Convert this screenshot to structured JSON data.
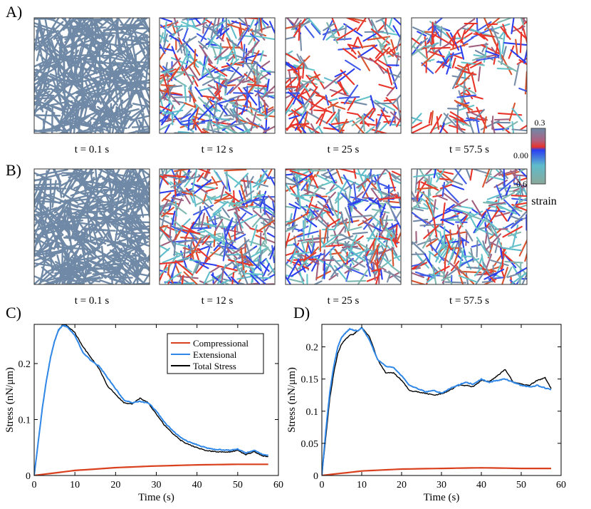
{
  "panel_labels": {
    "A": "A)",
    "B": "B)",
    "C": "C)",
    "D": "D)"
  },
  "snapshots": {
    "A": [
      {
        "time_label": "t = 0.1 s",
        "seed": 11,
        "mode": "initial"
      },
      {
        "time_label": "t = 12 s",
        "seed": 23,
        "mode": "strained"
      },
      {
        "time_label": "t = 25 s",
        "seed": 37,
        "mode": "sparse"
      },
      {
        "time_label": "t = 57.5 s",
        "seed": 53,
        "mode": "verysparse"
      }
    ],
    "B": [
      {
        "time_label": "t = 0.1 s",
        "seed": 61,
        "mode": "initial"
      },
      {
        "time_label": "t = 12 s",
        "seed": 71,
        "mode": "strained"
      },
      {
        "time_label": "t = 25 s",
        "seed": 83,
        "mode": "strained"
      },
      {
        "time_label": "t = 57.5 s",
        "seed": 97,
        "mode": "medium"
      }
    ]
  },
  "colorbar": {
    "title": "strain",
    "tick_max": "0.3",
    "tick_mid": "0.00",
    "tick_min": "-0.6",
    "range": [
      -0.6,
      0.3
    ],
    "stops": [
      {
        "value": 0.3,
        "color": "#6e8aa8"
      },
      {
        "value": 0.1,
        "color": "#b06080"
      },
      {
        "value": 0.0,
        "color": "#e8342a"
      },
      {
        "value": -0.05,
        "color": "#2a3ef0"
      },
      {
        "value": -0.3,
        "color": "#5fbccb"
      },
      {
        "value": -0.6,
        "color": "#8aa89a"
      }
    ]
  },
  "colors": {
    "initial_filament": "#6f89a6",
    "compressional": "#d9411e",
    "extensional": "#2f87e8",
    "total": "#000000"
  },
  "chart_data": [
    {
      "type": "line",
      "panel": "C",
      "xlabel": "Time (s)",
      "ylabel": "Stress (nN/μm)",
      "xlim": [
        0,
        60
      ],
      "ylim": [
        0,
        0.27
      ],
      "xticks": [
        0,
        10,
        20,
        30,
        40,
        50,
        60
      ],
      "yticks": [
        0,
        0.1,
        0.2
      ],
      "ytick_labels": [
        "0",
        "0.1",
        "0.2"
      ],
      "legend": {
        "placement": "top-right",
        "entries": [
          "Compressional",
          "Extensional",
          "Total Stress"
        ]
      },
      "series": [
        {
          "name": "Compressional",
          "color": "#d9411e",
          "x": [
            0,
            10,
            20,
            30,
            40,
            50,
            57.5
          ],
          "y": [
            0,
            0.009,
            0.014,
            0.017,
            0.019,
            0.02,
            0.02
          ]
        },
        {
          "name": "Extensional",
          "color": "#2f87e8",
          "x": [
            0,
            1,
            2,
            3,
            4,
            5,
            6,
            7,
            8,
            10,
            12,
            14,
            16,
            18,
            20,
            22,
            24,
            26,
            28,
            30,
            32,
            34,
            36,
            38,
            40,
            42,
            44,
            46,
            48,
            50,
            52,
            54,
            56,
            57.5
          ],
          "y": [
            0,
            0.06,
            0.12,
            0.17,
            0.21,
            0.24,
            0.26,
            0.268,
            0.266,
            0.25,
            0.22,
            0.205,
            0.195,
            0.175,
            0.155,
            0.135,
            0.13,
            0.132,
            0.13,
            0.115,
            0.095,
            0.08,
            0.068,
            0.06,
            0.055,
            0.05,
            0.047,
            0.046,
            0.045,
            0.047,
            0.04,
            0.045,
            0.038,
            0.036
          ]
        },
        {
          "name": "Total Stress",
          "color": "#000000",
          "x": [
            0,
            1,
            2,
            3,
            4,
            5,
            6,
            7,
            8,
            10,
            12,
            14,
            16,
            18,
            20,
            22,
            24,
            26,
            28,
            30,
            32,
            34,
            36,
            38,
            40,
            42,
            44,
            46,
            48,
            50,
            52,
            54,
            56,
            57.5
          ],
          "y": [
            0,
            0.06,
            0.12,
            0.17,
            0.21,
            0.24,
            0.26,
            0.27,
            0.268,
            0.255,
            0.23,
            0.21,
            0.19,
            0.16,
            0.145,
            0.13,
            0.128,
            0.138,
            0.13,
            0.11,
            0.09,
            0.075,
            0.063,
            0.055,
            0.05,
            0.045,
            0.043,
            0.042,
            0.042,
            0.045,
            0.037,
            0.043,
            0.035,
            0.034
          ]
        }
      ]
    },
    {
      "type": "line",
      "panel": "D",
      "xlabel": "Time (s)",
      "ylabel": "Stress (nN/μm)",
      "xlim": [
        0,
        60
      ],
      "ylim": [
        0,
        0.235
      ],
      "xticks": [
        0,
        10,
        20,
        30,
        40,
        50,
        60
      ],
      "yticks": [
        0,
        0.05,
        0.1,
        0.15,
        0.2
      ],
      "ytick_labels": [
        "0",
        "0.05",
        "0.1",
        "0.15",
        "0.2"
      ],
      "series": [
        {
          "name": "Compressional",
          "color": "#d9411e",
          "x": [
            0,
            10,
            20,
            30,
            40,
            50,
            57.5
          ],
          "y": [
            0,
            0.007,
            0.01,
            0.011,
            0.012,
            0.011,
            0.011
          ]
        },
        {
          "name": "Extensional",
          "color": "#2f87e8",
          "x": [
            0,
            1,
            2,
            3,
            4,
            5,
            6,
            7,
            8,
            9,
            10,
            12,
            14,
            16,
            18,
            20,
            22,
            24,
            26,
            28,
            30,
            32,
            34,
            36,
            38,
            40,
            42,
            44,
            46,
            48,
            50,
            52,
            54,
            56,
            57.5
          ],
          "y": [
            0,
            0.07,
            0.13,
            0.17,
            0.2,
            0.215,
            0.222,
            0.228,
            0.226,
            0.225,
            0.23,
            0.21,
            0.18,
            0.17,
            0.168,
            0.155,
            0.14,
            0.135,
            0.13,
            0.132,
            0.128,
            0.135,
            0.14,
            0.145,
            0.142,
            0.15,
            0.145,
            0.148,
            0.15,
            0.145,
            0.14,
            0.138,
            0.14,
            0.136,
            0.134
          ]
        },
        {
          "name": "Total Stress",
          "color": "#000000",
          "x": [
            0,
            1,
            2,
            3,
            4,
            5,
            6,
            7,
            8,
            9,
            10,
            12,
            14,
            16,
            18,
            20,
            22,
            24,
            26,
            28,
            30,
            32,
            34,
            36,
            38,
            40,
            42,
            44,
            46,
            48,
            50,
            52,
            54,
            56,
            57.5
          ],
          "y": [
            0,
            0.06,
            0.12,
            0.16,
            0.19,
            0.205,
            0.212,
            0.218,
            0.22,
            0.225,
            0.23,
            0.215,
            0.18,
            0.16,
            0.16,
            0.148,
            0.132,
            0.13,
            0.128,
            0.125,
            0.127,
            0.132,
            0.14,
            0.14,
            0.138,
            0.148,
            0.146,
            0.155,
            0.165,
            0.145,
            0.142,
            0.14,
            0.148,
            0.152,
            0.135
          ]
        }
      ]
    }
  ]
}
